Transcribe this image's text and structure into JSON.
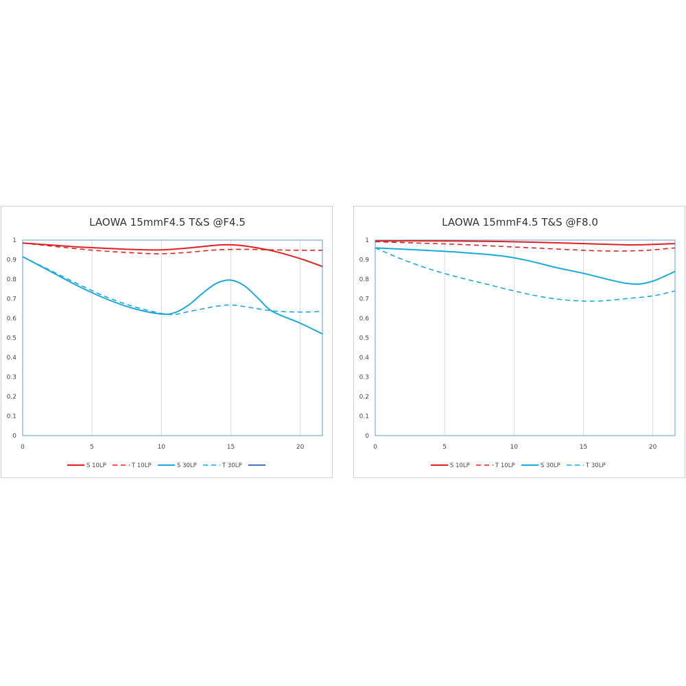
{
  "chart_data": [
    {
      "type": "line",
      "title": "LAOWA  15mmF4.5  T&S      @F4.5",
      "xlabel": "",
      "ylabel": "",
      "xlim": [
        0,
        21.6
      ],
      "ylim": [
        0,
        1
      ],
      "x_ticks": [
        "0",
        "5",
        "10",
        "15",
        "20"
      ],
      "y_ticks": [
        "0",
        "0.1",
        "0.2",
        "0.3",
        "0.4",
        "0.5",
        "0.6",
        "0.7",
        "0.8",
        "0.9",
        "1"
      ],
      "grid": "vertical",
      "legend_position": "bottom",
      "series": [
        {
          "name": "S 10LP",
          "color": "#e02020",
          "style": "solid",
          "x": [
            0,
            2,
            4,
            6,
            8,
            10,
            12,
            14,
            15,
            16,
            18,
            20,
            21.6
          ],
          "y": [
            0.985,
            0.975,
            0.965,
            0.958,
            0.952,
            0.95,
            0.96,
            0.974,
            0.976,
            0.97,
            0.945,
            0.905,
            0.865
          ]
        },
        {
          "name": "T 10LP",
          "color": "#e02020",
          "style": "dashed",
          "x": [
            0,
            2,
            4,
            6,
            8,
            10,
            12,
            14,
            16,
            18,
            20,
            21.6
          ],
          "y": [
            0.985,
            0.97,
            0.955,
            0.943,
            0.935,
            0.93,
            0.938,
            0.95,
            0.953,
            0.95,
            0.948,
            0.948
          ]
        },
        {
          "name": "S 30LP",
          "color": "#1aa7dc",
          "style": "solid",
          "x": [
            0,
            2,
            4,
            6,
            8,
            10,
            11,
            12,
            13,
            14,
            15,
            16,
            17,
            18,
            20,
            21.6
          ],
          "y": [
            0.915,
            0.84,
            0.765,
            0.7,
            0.65,
            0.622,
            0.63,
            0.67,
            0.73,
            0.78,
            0.795,
            0.765,
            0.7,
            0.635,
            0.575,
            0.52
          ]
        },
        {
          "name": "T 30LP",
          "color": "#1aa7dc",
          "style": "dashed",
          "x": [
            0,
            2,
            4,
            6,
            8,
            10,
            11,
            12,
            14,
            15,
            16,
            18,
            20,
            21.6
          ],
          "y": [
            0.915,
            0.845,
            0.775,
            0.71,
            0.66,
            0.625,
            0.62,
            0.635,
            0.662,
            0.668,
            0.66,
            0.638,
            0.632,
            0.635
          ]
        },
        {
          "name": "",
          "color": "#4472c4",
          "style": "solid",
          "x": [],
          "y": []
        }
      ]
    },
    {
      "type": "line",
      "title": "LAOWA  15mmF4.5  T&S      @F8.0",
      "xlabel": "",
      "ylabel": "",
      "xlim": [
        0,
        21.6
      ],
      "ylim": [
        0,
        1
      ],
      "x_ticks": [
        "0",
        "5",
        "10",
        "15",
        "20"
      ],
      "y_ticks": [
        "0",
        "0.1",
        "0.2",
        "0.3",
        "0.4",
        "0.5",
        "0.6",
        "0.7",
        "0.8",
        "0.9",
        "1"
      ],
      "grid": "vertical",
      "legend_position": "bottom",
      "series": [
        {
          "name": "S 10LP",
          "color": "#e02020",
          "style": "solid",
          "x": [
            0,
            3,
            6,
            9,
            12,
            15,
            18,
            19,
            20,
            21.6
          ],
          "y": [
            0.995,
            0.996,
            0.995,
            0.993,
            0.988,
            0.982,
            0.976,
            0.976,
            0.978,
            0.982
          ]
        },
        {
          "name": "T 10LP",
          "color": "#e02020",
          "style": "dashed",
          "x": [
            0,
            3,
            6,
            9,
            12,
            15,
            17,
            19,
            20,
            21.6
          ],
          "y": [
            0.992,
            0.985,
            0.978,
            0.968,
            0.958,
            0.948,
            0.944,
            0.946,
            0.95,
            0.96
          ]
        },
        {
          "name": "S 30LP",
          "color": "#1aa7dc",
          "style": "solid",
          "x": [
            0,
            3,
            6,
            9,
            11,
            13,
            15,
            17,
            18,
            19,
            20,
            21,
            21.6
          ],
          "y": [
            0.96,
            0.95,
            0.938,
            0.92,
            0.895,
            0.86,
            0.83,
            0.795,
            0.78,
            0.775,
            0.79,
            0.82,
            0.84
          ]
        },
        {
          "name": "T 30LP",
          "color": "#1aa7dc",
          "style": "dashed",
          "x": [
            0,
            2,
            4,
            6,
            8,
            10,
            12,
            14,
            16,
            18,
            20,
            21.6
          ],
          "y": [
            0.96,
            0.9,
            0.85,
            0.81,
            0.775,
            0.74,
            0.71,
            0.692,
            0.688,
            0.7,
            0.715,
            0.74
          ]
        }
      ]
    }
  ]
}
